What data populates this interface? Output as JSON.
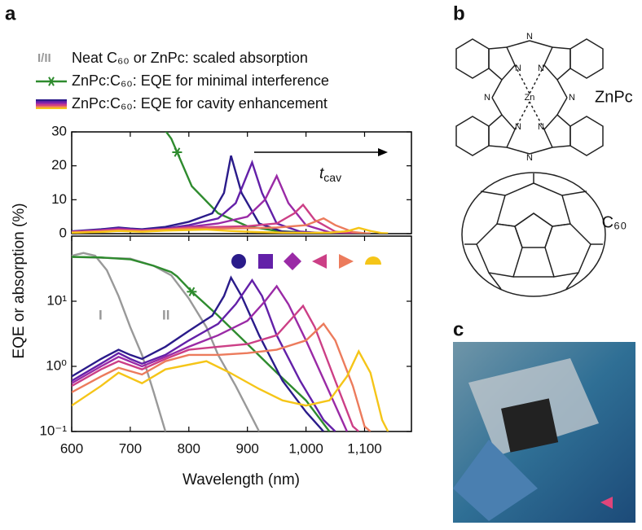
{
  "panel_labels": {
    "a": "a",
    "b": "b",
    "c": "c"
  },
  "chart_data": {
    "type": "line",
    "xlabel": "Wavelength (nm)",
    "ylabel": "EQE or absorption (%)",
    "xlim": [
      600,
      1180
    ],
    "xticks": [
      600,
      700,
      800,
      900,
      {
        "value": 1000,
        "label": "1,000"
      },
      {
        "value": 1100,
        "label": "1,100"
      }
    ],
    "panels": [
      {
        "scale": "linear",
        "ylim": [
          0,
          30
        ],
        "yticks": [
          0,
          10,
          20,
          30
        ]
      },
      {
        "scale": "log",
        "ylim": [
          0.1,
          100
        ],
        "yticks": [
          {
            "value": 0.1,
            "label": "10⁻¹"
          },
          {
            "value": 1,
            "label": "10⁰"
          },
          {
            "value": 10,
            "label": "10¹"
          }
        ]
      }
    ],
    "legend": [
      {
        "icon": "I/II",
        "label": "Neat C₆₀ or ZnPc: scaled absorption"
      },
      {
        "label": "ZnPc:C₆₀: EQE for minimal interference"
      },
      {
        "label": "ZnPc:C₆₀: EQE for cavity enhancement"
      }
    ],
    "arrow_label": {
      "main": "t",
      "sub": "cav"
    },
    "annotations": [
      "I",
      "II"
    ],
    "series": [
      {
        "group": "absorption",
        "color": "#999999",
        "panels": [
          1
        ],
        "x": [
          600,
          620,
          640,
          660,
          680,
          700,
          720,
          740,
          760
        ],
        "values": [
          50,
          55,
          50,
          30,
          12,
          4,
          1.5,
          0.4,
          0.1
        ]
      },
      {
        "group": "absorption",
        "color": "#999999",
        "panels": [
          1
        ],
        "x": [
          600,
          700,
          740,
          770,
          800,
          830,
          850,
          880,
          910,
          920
        ],
        "values": [
          48,
          45,
          35,
          25,
          11,
          4,
          1.5,
          0.5,
          0.15,
          0.1
        ]
      },
      {
        "group": "minimal",
        "color": "#2e8b2e",
        "panels": [
          0,
          1
        ],
        "x": [
          600,
          650,
          700,
          740,
          770,
          780,
          805,
          850,
          900,
          950,
          1000,
          1040
        ],
        "values": [
          48,
          47,
          44,
          35,
          28,
          24,
          14,
          6,
          2.2,
          0.8,
          0.3,
          0.1
        ]
      },
      {
        "group": "cavity",
        "color": "#2a1b8a",
        "marker": "circle",
        "panels": [
          0,
          1
        ],
        "x": [
          600,
          650,
          680,
          700,
          720,
          760,
          800,
          840,
          860,
          872,
          890,
          920,
          960,
          1000,
          1030
        ],
        "values": [
          0.7,
          1.3,
          1.8,
          1.5,
          1.3,
          2,
          3.5,
          6,
          12,
          23,
          12,
          3,
          0.6,
          0.2,
          0.1
        ]
      },
      {
        "group": "cavity",
        "color": "#6320a8",
        "marker": "square",
        "panels": [
          0,
          1
        ],
        "x": [
          600,
          650,
          680,
          700,
          720,
          760,
          800,
          850,
          880,
          908,
          925,
          950,
          990,
          1030,
          1050
        ],
        "values": [
          0.6,
          1.1,
          1.6,
          1.3,
          1.1,
          1.5,
          2.5,
          4.5,
          9,
          21,
          12,
          3,
          0.6,
          0.15,
          0.1
        ]
      },
      {
        "group": "cavity",
        "color": "#9a2aa6",
        "marker": "diamond",
        "panels": [
          0,
          1
        ],
        "x": [
          600,
          650,
          680,
          720,
          760,
          800,
          850,
          900,
          930,
          950,
          970,
          1000,
          1040,
          1070
        ],
        "values": [
          0.55,
          1,
          1.4,
          1,
          1.4,
          2,
          3,
          5,
          10,
          17,
          9,
          2.5,
          0.4,
          0.1
        ]
      },
      {
        "group": "cavity",
        "color": "#cc3f86",
        "marker": "left",
        "panels": [
          0,
          1
        ],
        "x": [
          600,
          650,
          680,
          720,
          760,
          800,
          850,
          900,
          950,
          980,
          995,
          1015,
          1050,
          1080,
          1090
        ],
        "values": [
          0.5,
          0.9,
          1.2,
          0.9,
          1.3,
          1.8,
          2,
          2.2,
          3,
          6,
          8.5,
          4,
          0.6,
          0.12,
          0.1
        ]
      },
      {
        "group": "cavity",
        "color": "#ec7b5c",
        "marker": "right",
        "panels": [
          0,
          1
        ],
        "x": [
          600,
          650,
          680,
          720,
          760,
          800,
          850,
          900,
          950,
          1000,
          1030,
          1050,
          1080,
          1100,
          1110
        ],
        "values": [
          0.4,
          0.7,
          0.95,
          0.75,
          1.2,
          1.5,
          1.5,
          1.6,
          1.8,
          2.5,
          4.5,
          2.5,
          0.5,
          0.12,
          0.1
        ]
      },
      {
        "group": "cavity",
        "color": "#f5c518",
        "marker": "half",
        "panels": [
          0,
          1
        ],
        "x": [
          600,
          650,
          680,
          720,
          760,
          830,
          870,
          920,
          960,
          1000,
          1040,
          1070,
          1090,
          1110,
          1130,
          1140
        ],
        "values": [
          0.25,
          0.5,
          0.8,
          0.55,
          0.9,
          1.2,
          0.8,
          0.45,
          0.3,
          0.25,
          0.3,
          0.7,
          1.7,
          0.8,
          0.15,
          0.1
        ]
      }
    ]
  },
  "structures": {
    "zinc": "Zn",
    "nitrogen": "N",
    "zinc_phthalocyanine": "ZnPc",
    "fullerene": "C₆₀"
  }
}
